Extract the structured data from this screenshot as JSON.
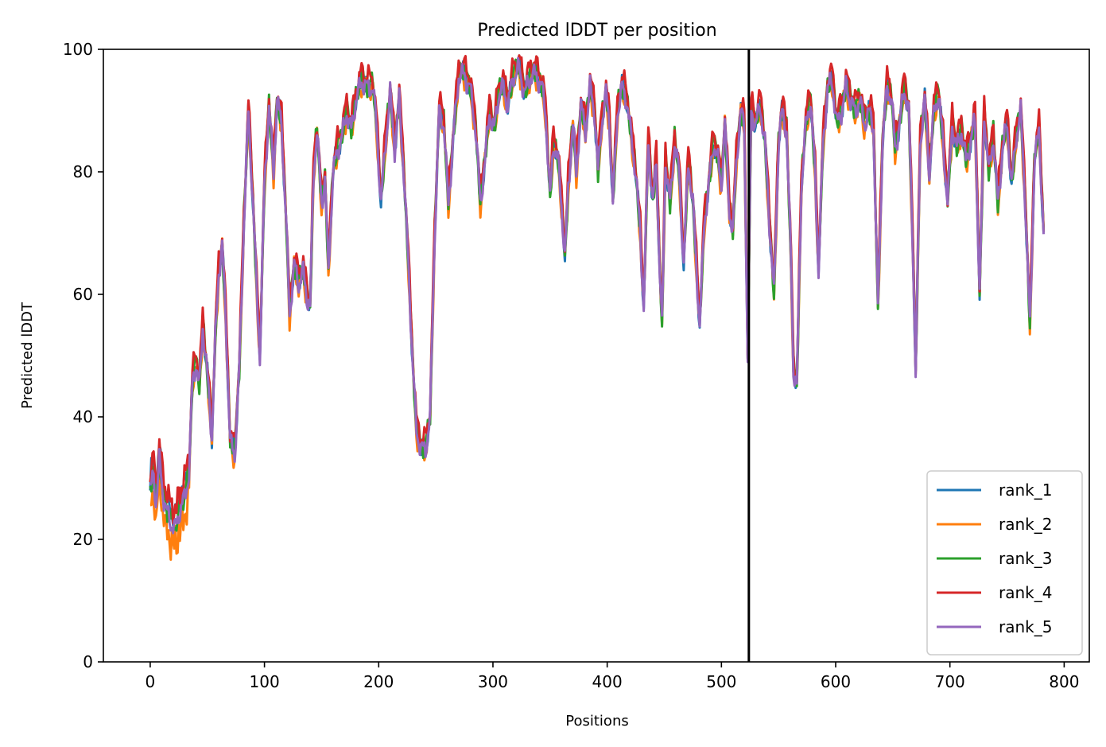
{
  "chart_data": {
    "type": "line",
    "title": "Predicted lDDT per position",
    "xlabel": "Positions",
    "ylabel": "Predicted lDDT",
    "xlim": [
      -41,
      822
    ],
    "ylim": [
      0,
      100
    ],
    "xticks": [
      0,
      100,
      200,
      300,
      400,
      500,
      600,
      700,
      800
    ],
    "yticks": [
      0,
      20,
      40,
      60,
      80,
      100
    ],
    "grid": false,
    "legend_position": "lower-right",
    "vertical_line": {
      "x": 524,
      "color": "#000000"
    },
    "profile_keypoints": [
      [
        0,
        28
      ],
      [
        3,
        31
      ],
      [
        5,
        26
      ],
      [
        8,
        33
      ],
      [
        11,
        28
      ],
      [
        14,
        25
      ],
      [
        18,
        23
      ],
      [
        22,
        22
      ],
      [
        26,
        25
      ],
      [
        30,
        27
      ],
      [
        34,
        31
      ],
      [
        37,
        46
      ],
      [
        40,
        49
      ],
      [
        43,
        45
      ],
      [
        46,
        55
      ],
      [
        50,
        47
      ],
      [
        54,
        37
      ],
      [
        57,
        53
      ],
      [
        60,
        64
      ],
      [
        63,
        68
      ],
      [
        66,
        57
      ],
      [
        70,
        36
      ],
      [
        74,
        34
      ],
      [
        78,
        48
      ],
      [
        82,
        72
      ],
      [
        86,
        90
      ],
      [
        90,
        75
      ],
      [
        93,
        62
      ],
      [
        96,
        50
      ],
      [
        100,
        78
      ],
      [
        104,
        91
      ],
      [
        108,
        80
      ],
      [
        111,
        92
      ],
      [
        115,
        88
      ],
      [
        119,
        72
      ],
      [
        122,
        57
      ],
      [
        126,
        65
      ],
      [
        130,
        62
      ],
      [
        134,
        64
      ],
      [
        137,
        60
      ],
      [
        140,
        58
      ],
      [
        143,
        80
      ],
      [
        146,
        87
      ],
      [
        150,
        75
      ],
      [
        153,
        79
      ],
      [
        156,
        64
      ],
      [
        160,
        80
      ],
      [
        164,
        84
      ],
      [
        168,
        86
      ],
      [
        172,
        90
      ],
      [
        176,
        87
      ],
      [
        180,
        92
      ],
      [
        185,
        95
      ],
      [
        190,
        94
      ],
      [
        195,
        94
      ],
      [
        198,
        88
      ],
      [
        202,
        75
      ],
      [
        206,
        85
      ],
      [
        210,
        93
      ],
      [
        214,
        84
      ],
      [
        218,
        92
      ],
      [
        222,
        80
      ],
      [
        226,
        65
      ],
      [
        230,
        48
      ],
      [
        233,
        38
      ],
      [
        237,
        35
      ],
      [
        241,
        35
      ],
      [
        245,
        40
      ],
      [
        249,
        70
      ],
      [
        253,
        90
      ],
      [
        257,
        88
      ],
      [
        261,
        75
      ],
      [
        265,
        85
      ],
      [
        270,
        96
      ],
      [
        275,
        96
      ],
      [
        280,
        94
      ],
      [
        285,
        87
      ],
      [
        289,
        75
      ],
      [
        293,
        82
      ],
      [
        297,
        90
      ],
      [
        301,
        87
      ],
      [
        305,
        93
      ],
      [
        309,
        94
      ],
      [
        313,
        91
      ],
      [
        318,
        96
      ],
      [
        323,
        97
      ],
      [
        328,
        93
      ],
      [
        333,
        96
      ],
      [
        338,
        96
      ],
      [
        343,
        94
      ],
      [
        346,
        90
      ],
      [
        350,
        76
      ],
      [
        353,
        85
      ],
      [
        357,
        82
      ],
      [
        360,
        75
      ],
      [
        363,
        66
      ],
      [
        366,
        78
      ],
      [
        370,
        88
      ],
      [
        373,
        80
      ],
      [
        377,
        91
      ],
      [
        381,
        87
      ],
      [
        385,
        94
      ],
      [
        389,
        90
      ],
      [
        392,
        80
      ],
      [
        395,
        88
      ],
      [
        399,
        93
      ],
      [
        402,
        88
      ],
      [
        405,
        75
      ],
      [
        409,
        90
      ],
      [
        413,
        94
      ],
      [
        417,
        92
      ],
      [
        421,
        86
      ],
      [
        425,
        80
      ],
      [
        429,
        70
      ],
      [
        432,
        58
      ],
      [
        436,
        85
      ],
      [
        440,
        75
      ],
      [
        443,
        82
      ],
      [
        446,
        64
      ],
      [
        448,
        55
      ],
      [
        451,
        82
      ],
      [
        455,
        75
      ],
      [
        459,
        85
      ],
      [
        463,
        80
      ],
      [
        467,
        65
      ],
      [
        471,
        82
      ],
      [
        475,
        75
      ],
      [
        478,
        65
      ],
      [
        481,
        55
      ],
      [
        485,
        72
      ],
      [
        489,
        78
      ],
      [
        493,
        85
      ],
      [
        497,
        82
      ],
      [
        500,
        78
      ],
      [
        503,
        88
      ],
      [
        507,
        74
      ],
      [
        510,
        70
      ],
      [
        513,
        82
      ],
      [
        517,
        90
      ],
      [
        520,
        88
      ],
      [
        523,
        50
      ],
      [
        526,
        90
      ],
      [
        530,
        88
      ],
      [
        534,
        91
      ],
      [
        538,
        85
      ],
      [
        542,
        72
      ],
      [
        546,
        60
      ],
      [
        550,
        85
      ],
      [
        553,
        90
      ],
      [
        557,
        87
      ],
      [
        561,
        65
      ],
      [
        563,
        48
      ],
      [
        566,
        45
      ],
      [
        570,
        78
      ],
      [
        574,
        88
      ],
      [
        578,
        92
      ],
      [
        582,
        80
      ],
      [
        585,
        64
      ],
      [
        589,
        85
      ],
      [
        593,
        94
      ],
      [
        597,
        95
      ],
      [
        601,
        88
      ],
      [
        605,
        90
      ],
      [
        609,
        94
      ],
      [
        613,
        92
      ],
      [
        617,
        90
      ],
      [
        621,
        92
      ],
      [
        625,
        88
      ],
      [
        629,
        90
      ],
      [
        633,
        88
      ],
      [
        637,
        58
      ],
      [
        641,
        85
      ],
      [
        645,
        94
      ],
      [
        649,
        92
      ],
      [
        652,
        84
      ],
      [
        656,
        88
      ],
      [
        660,
        94
      ],
      [
        664,
        90
      ],
      [
        668,
        65
      ],
      [
        670,
        47
      ],
      [
        674,
        85
      ],
      [
        678,
        92
      ],
      [
        682,
        80
      ],
      [
        686,
        90
      ],
      [
        690,
        93
      ],
      [
        694,
        85
      ],
      [
        698,
        75
      ],
      [
        702,
        88
      ],
      [
        706,
        84
      ],
      [
        710,
        87
      ],
      [
        714,
        82
      ],
      [
        718,
        85
      ],
      [
        722,
        89
      ],
      [
        726,
        60
      ],
      [
        730,
        90
      ],
      [
        734,
        80
      ],
      [
        738,
        86
      ],
      [
        742,
        75
      ],
      [
        746,
        84
      ],
      [
        750,
        88
      ],
      [
        754,
        78
      ],
      [
        758,
        86
      ],
      [
        762,
        90
      ],
      [
        766,
        75
      ],
      [
        770,
        55
      ],
      [
        774,
        82
      ],
      [
        778,
        87
      ],
      [
        782,
        70
      ]
    ],
    "series": [
      {
        "name": "rank_1",
        "color": "#1f77b4",
        "offset": 0.0
      },
      {
        "name": "rank_2",
        "color": "#ff7f0e",
        "offset": -0.8
      },
      {
        "name": "rank_3",
        "color": "#2ca02c",
        "offset": 0.3
      },
      {
        "name": "rank_4",
        "color": "#d62728",
        "offset": 1.5
      },
      {
        "name": "rank_5",
        "color": "#9467bd",
        "offset": -0.3
      }
    ]
  }
}
